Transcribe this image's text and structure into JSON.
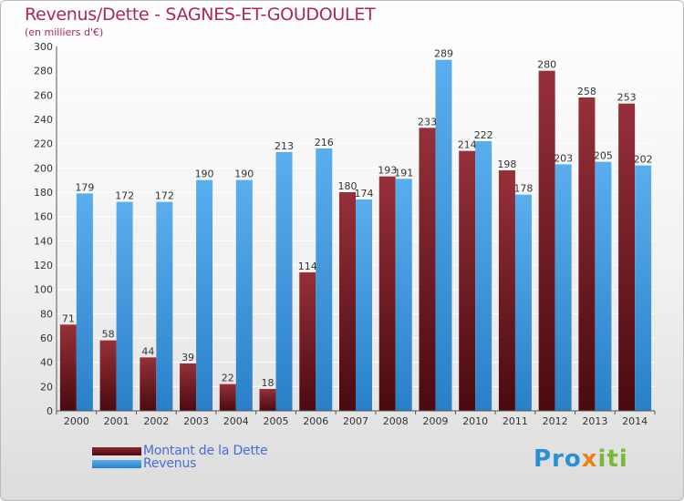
{
  "header": {
    "title": "Revenus/Dette - SAGNES-ET-GOUDOULET",
    "subtitle": "(en milliers d'€)"
  },
  "legend": {
    "items": [
      {
        "label": "Montant de la Dette",
        "color": "#7a1c25"
      },
      {
        "label": "Revenus",
        "color": "#3b96de"
      }
    ]
  },
  "logo": {
    "text": "Proxiti"
  },
  "colors": {
    "debt": "#7a1c25",
    "revenue": "#3b96de",
    "grid": "#ffffff"
  },
  "chart_data": {
    "type": "bar",
    "categories": [
      "2000",
      "2001",
      "2002",
      "2003",
      "2004",
      "2005",
      "2006",
      "2007",
      "2008",
      "2009",
      "2010",
      "2011",
      "2012",
      "2013",
      "2014"
    ],
    "series": [
      {
        "name": "Montant de la Dette",
        "values": [
          71,
          58,
          44,
          39,
          22,
          18,
          114,
          180,
          193,
          233,
          214,
          198,
          280,
          258,
          253
        ]
      },
      {
        "name": "Revenus",
        "values": [
          179,
          172,
          172,
          190,
          190,
          213,
          216,
          174,
          191,
          289,
          222,
          178,
          203,
          205,
          202
        ]
      }
    ],
    "ylim": [
      0,
      300
    ],
    "yticks": [
      0,
      20,
      40,
      60,
      80,
      100,
      120,
      140,
      160,
      180,
      200,
      220,
      240,
      260,
      280,
      300
    ],
    "grid": true,
    "legend_position": "bottom-left"
  }
}
